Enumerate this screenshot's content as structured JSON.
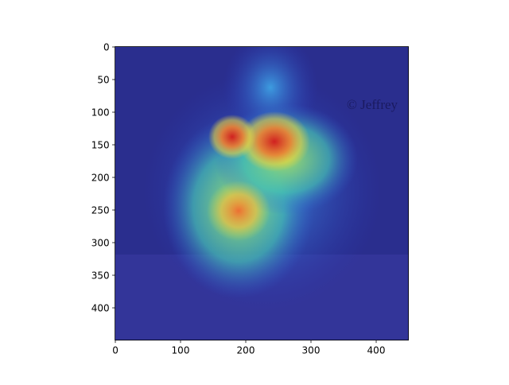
{
  "chart_data": {
    "type": "image",
    "annotation": "© Jeffrey",
    "xlim": [
      -0.5,
      449.5
    ],
    "ylim": [
      449.5,
      -0.5
    ],
    "xticks": [
      0,
      100,
      200,
      300,
      400
    ],
    "yticks": [
      0,
      50,
      100,
      150,
      200,
      250,
      300,
      350,
      400
    ]
  }
}
